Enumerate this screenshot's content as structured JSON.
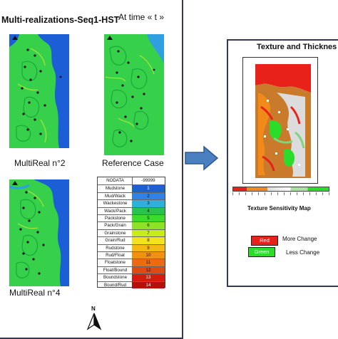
{
  "left_panel": {
    "title": "Multi-realizations-Seq1-HST",
    "time_label": "At time « t »",
    "captions": {
      "map_top_left": "MultiReal n°2",
      "map_top_right": "Reference Case",
      "map_bottom_left": "MultiReal n°4"
    },
    "north_label": "N",
    "legend": {
      "header": {
        "name": "NODATA",
        "code": "-99999"
      },
      "rows": [
        {
          "name": "Mudstone",
          "code": "1",
          "color": "#1f5fd0"
        },
        {
          "name": "Mud/Wack",
          "code": "2",
          "color": "#2f83e6"
        },
        {
          "name": "Wackestone",
          "code": "3",
          "color": "#2fb0d8"
        },
        {
          "name": "Wack/Pack",
          "code": "4",
          "color": "#27c24f"
        },
        {
          "name": "Packstone",
          "code": "5",
          "color": "#3fd92f"
        },
        {
          "name": "Pack/Grain",
          "code": "6",
          "color": "#8ee226"
        },
        {
          "name": "Grainstone",
          "code": "7",
          "color": "#c8ea1e"
        },
        {
          "name": "Grain/Rud",
          "code": "8",
          "color": "#f2e31a"
        },
        {
          "name": "Rudstone",
          "code": "9",
          "color": "#f5b915"
        },
        {
          "name": "Rud/Float",
          "code": "10",
          "color": "#f19112"
        },
        {
          "name": "Floatstone",
          "code": "11",
          "color": "#ec6a10"
        },
        {
          "name": "Float/Bound",
          "code": "12",
          "color": "#df4a10"
        },
        {
          "name": "Boundstone",
          "code": "13",
          "color": "#d41c0e"
        },
        {
          "name": "Bound/Rud",
          "code": "14",
          "color": "#b4100c"
        }
      ]
    }
  },
  "right_panel": {
    "title": "Texture and Thicknes",
    "map_caption": "Texture Sensitivity Map",
    "red_box": "Red",
    "red_label": "More Change",
    "green_box": "Green",
    "green_label": "Less Change"
  },
  "colors": {
    "panel_border": "#333a4f",
    "arrow_fill": "#4a7fc0",
    "arrow_stroke": "#2e5a93",
    "sea_blue": "#1c5ed6",
    "facies_green": "#38d44a",
    "change_red": "#e8211a",
    "change_green": "#2bdc2b"
  }
}
